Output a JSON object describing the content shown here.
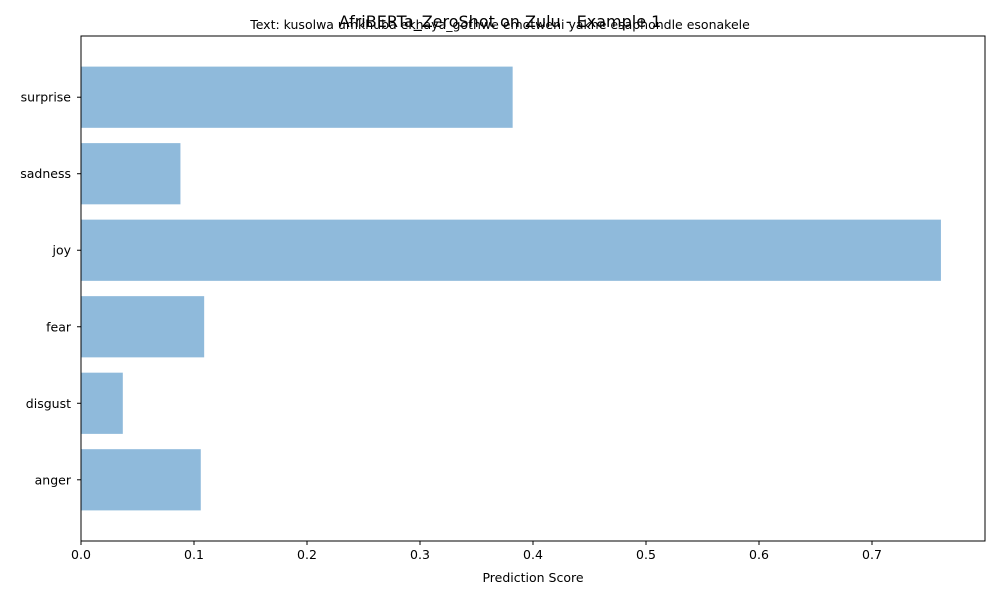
{
  "chart_data": {
    "type": "bar",
    "orientation": "horizontal",
    "title": "AfriBERTa_ZeroShot on Zulu - Example 1",
    "subtitle": "Text: kusolwa umkhuba ekhaya_gothwe emotweni yakhe esaphondle esonakele",
    "xlabel": "Prediction Score",
    "ylabel": "",
    "categories": [
      "anger",
      "disgust",
      "fear",
      "joy",
      "sadness",
      "surprise"
    ],
    "values": [
      0.106,
      0.037,
      0.109,
      0.761,
      0.088,
      0.382
    ],
    "xlim": [
      0,
      0.8
    ],
    "xticks": [
      "0.0",
      "0.1",
      "0.2",
      "0.3",
      "0.4",
      "0.5",
      "0.6",
      "0.7"
    ],
    "bar_color": "#8fbadb",
    "grid": false,
    "legend": "none"
  }
}
